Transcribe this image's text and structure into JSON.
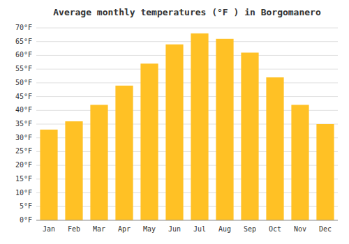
{
  "chart_data": {
    "type": "bar",
    "title": "Average monthly temperatures (°F ) in Borgomanero",
    "categories": [
      "Jan",
      "Feb",
      "Mar",
      "Apr",
      "May",
      "Jun",
      "Jul",
      "Aug",
      "Sep",
      "Oct",
      "Nov",
      "Dec"
    ],
    "values": [
      33,
      36,
      42,
      49,
      57,
      64,
      68,
      66,
      61,
      52,
      42,
      35
    ],
    "color": "#FFC125",
    "ylim": [
      0,
      70
    ],
    "yticks": [
      {
        "value": 0,
        "label": "0°F"
      },
      {
        "value": 5,
        "label": "5°F"
      },
      {
        "value": 10,
        "label": "10°F"
      },
      {
        "value": 15,
        "label": "15°F"
      },
      {
        "value": 20,
        "label": "20°F"
      },
      {
        "value": 25,
        "label": "25°F"
      },
      {
        "value": 30,
        "label": "30°F"
      },
      {
        "value": 35,
        "label": "35°F"
      },
      {
        "value": 40,
        "label": "40°F"
      },
      {
        "value": 45,
        "label": "45°F"
      },
      {
        "value": 50,
        "label": "50°F"
      },
      {
        "value": 55,
        "label": "55°F"
      },
      {
        "value": 60,
        "label": "60°F"
      },
      {
        "value": 65,
        "label": "65°F"
      },
      {
        "value": 70,
        "label": "70°F"
      }
    ],
    "grid": true
  }
}
